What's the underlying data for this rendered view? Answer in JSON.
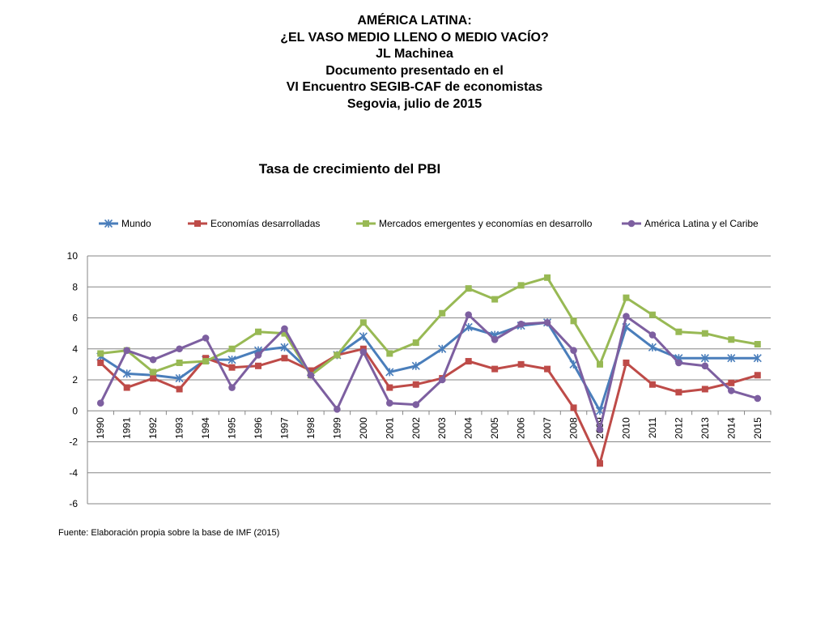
{
  "header": {
    "lines": [
      "AMÉRICA LATINA:",
      "¿EL VASO MEDIO LLENO O MEDIO VACÍO?",
      "JL Machinea",
      "Documento presentado en el",
      "VI Encuentro SEGIB-CAF de economistas",
      "Segovia, julio de 2015"
    ]
  },
  "source": "Fuente:  Elaboración propia sobre la base de IMF (2015)",
  "chart_data": {
    "type": "line",
    "title": "Tasa de crecimiento del PBI",
    "xlabel": "",
    "ylabel": "",
    "ylim": [
      -6,
      10
    ],
    "yticks": [
      -6,
      -4,
      -2,
      0,
      2,
      4,
      6,
      8,
      10
    ],
    "grid": true,
    "legend_position": "top",
    "categories": [
      "1990",
      "1991",
      "1992",
      "1993",
      "1994",
      "1995",
      "1996",
      "1997",
      "1998",
      "1999",
      "2000",
      "2001",
      "2002",
      "2003",
      "2004",
      "2005",
      "2006",
      "2007",
      "2008",
      "2009",
      "2010",
      "2011",
      "2012",
      "2013",
      "2014",
      "2015"
    ],
    "series": [
      {
        "name": "Mundo",
        "color": "#4a7ebb",
        "marker": "star",
        "values": [
          3.5,
          2.4,
          2.3,
          2.1,
          3.3,
          3.3,
          3.9,
          4.1,
          2.5,
          3.6,
          4.8,
          2.5,
          2.9,
          4.0,
          5.4,
          4.9,
          5.5,
          5.7,
          3.0,
          0.0,
          5.4,
          4.1,
          3.4,
          3.4,
          3.4,
          3.4
        ]
      },
      {
        "name": "Economías desarrolladas",
        "color": "#be4b48",
        "marker": "square",
        "values": [
          3.1,
          1.5,
          2.1,
          1.4,
          3.4,
          2.8,
          2.9,
          3.4,
          2.6,
          3.6,
          4.0,
          1.5,
          1.7,
          2.1,
          3.2,
          2.7,
          3.0,
          2.7,
          0.2,
          -3.4,
          3.1,
          1.7,
          1.2,
          1.4,
          1.8,
          2.3
        ]
      },
      {
        "name": "Mercados emergentes y economías en desarrollo",
        "color": "#98b954",
        "marker": "square",
        "values": [
          3.7,
          3.9,
          2.5,
          3.1,
          3.2,
          4.0,
          5.1,
          5.0,
          2.3,
          3.6,
          5.7,
          3.7,
          4.4,
          6.3,
          7.9,
          7.2,
          8.1,
          8.6,
          5.8,
          3.0,
          7.3,
          6.2,
          5.1,
          5.0,
          4.6,
          4.3
        ]
      },
      {
        "name": "América Latina y el Caribe",
        "color": "#7d5fa0",
        "marker": "circle",
        "values": [
          0.5,
          3.9,
          3.3,
          4.0,
          4.7,
          1.5,
          3.6,
          5.3,
          2.3,
          0.1,
          3.8,
          0.5,
          0.4,
          2.0,
          6.2,
          4.6,
          5.6,
          5.7,
          3.9,
          -1.2,
          6.1,
          4.9,
          3.1,
          2.9,
          1.3,
          0.8
        ]
      }
    ]
  }
}
